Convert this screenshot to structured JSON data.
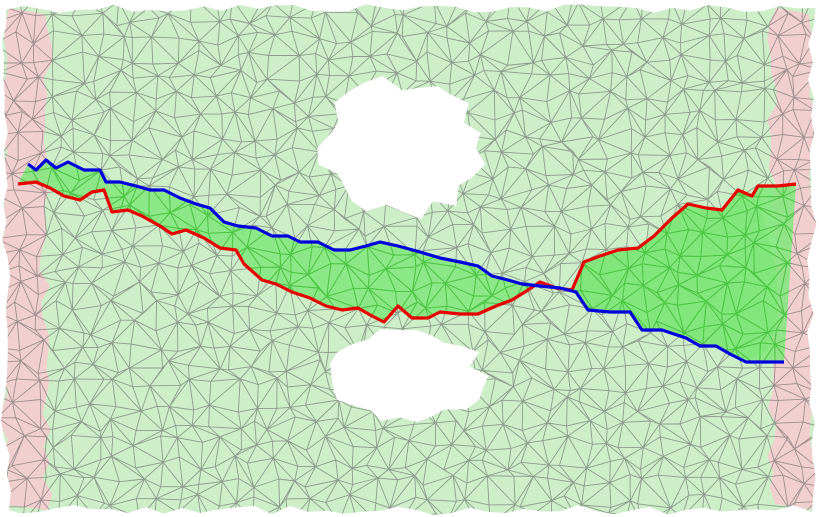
{
  "figure": {
    "kind": "triangulated mesh with two channel boundaries",
    "regions": [
      {
        "name": "left-boundary-band",
        "color": "#f2cfcf"
      },
      {
        "name": "right-boundary-band",
        "color": "#f2cfcf"
      },
      {
        "name": "mesh-domain",
        "color": "#cdeec9"
      },
      {
        "name": "channel-region",
        "color": "#7fe67a"
      },
      {
        "name": "hole-upper",
        "color": "#ffffff"
      },
      {
        "name": "hole-lower",
        "color": "#ffffff"
      }
    ],
    "lines": [
      {
        "name": "red-path",
        "color": "#e60000"
      },
      {
        "name": "blue-path",
        "color": "#0000dd"
      }
    ],
    "mesh_edge_color": "#5a5a5a"
  }
}
